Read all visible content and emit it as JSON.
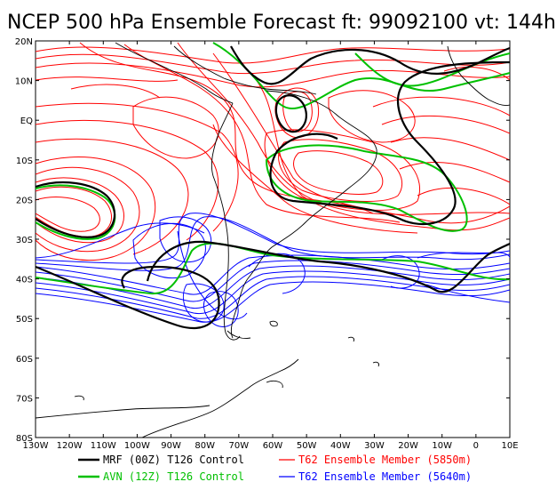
{
  "title": "NCEP 500 hPa Ensemble Forecast  ft: 99092100 vt: 144h",
  "lat_labels": [
    "20N",
    "10N",
    "EQ",
    "10S",
    "20S",
    "30S",
    "40S",
    "50S",
    "60S",
    "70S",
    "80S"
  ],
  "lon_labels": [
    "130W",
    "120W",
    "110W",
    "100W",
    "90W",
    "80W",
    "70W",
    "60W",
    "50W",
    "40W",
    "30W",
    "20W",
    "10W",
    "0",
    "10E"
  ],
  "legend": [
    {
      "label": "MRF (00Z) T126 Control",
      "color": "#000000"
    },
    {
      "label": "AVN (12Z) T126 Control",
      "color": "#00c000"
    },
    {
      "label": "T62 Ensemble Member (5850m)",
      "color": "#ff0000"
    },
    {
      "label": "T62 Ensemble Member (5640m)",
      "color": "#0000ff"
    }
  ],
  "colors": {
    "mrf": "#000000",
    "avn": "#00c000",
    "ens5850": "#ff0000",
    "ens5640": "#0000ff",
    "coast": "#000000"
  }
}
